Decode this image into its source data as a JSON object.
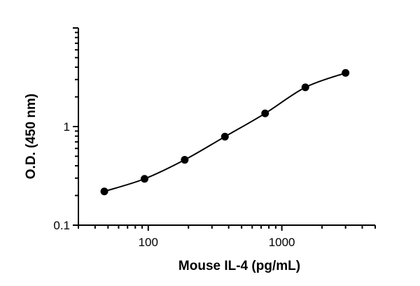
{
  "chart_data": {
    "type": "scatter",
    "title": "",
    "xlabel": "Mouse IL-4 (pg/mL)",
    "ylabel": "O.D. (450 nm)",
    "x_scale": "log",
    "y_scale": "log",
    "xlim": [
      30,
      5000
    ],
    "ylim": [
      0.1,
      10
    ],
    "x_tick_labels": [
      {
        "value": 100,
        "label": "100"
      },
      {
        "value": 1000,
        "label": "1000"
      }
    ],
    "y_tick_labels": [
      {
        "value": 0.1,
        "label": "0.1"
      },
      {
        "value": 1,
        "label": "1"
      }
    ],
    "grid": false,
    "legend": "none",
    "series": [
      {
        "x": [
          46.9,
          93.8,
          187.5,
          375,
          750,
          1500,
          3000
        ],
        "y": [
          0.22,
          0.295,
          0.46,
          0.79,
          1.36,
          2.5,
          3.5
        ]
      }
    ]
  }
}
